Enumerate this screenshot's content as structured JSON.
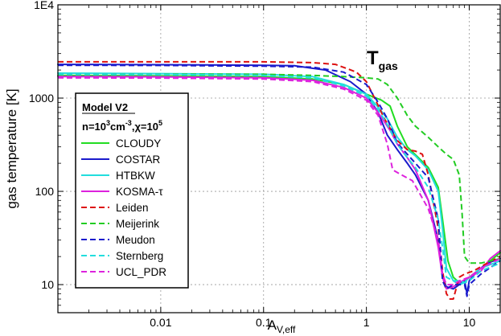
{
  "chart_data": {
    "type": "line",
    "xlabel": "A",
    "xlabel_sub": "V,eff",
    "ylabel": "gas temperature [K]",
    "xscale": "log",
    "yscale": "log",
    "xlim": [
      0.001,
      20
    ],
    "ylim": [
      5,
      10000
    ],
    "grid": true,
    "x_ticks": [
      {
        "value": 0.01,
        "label": "0.01"
      },
      {
        "value": 0.1,
        "label": "0.1"
      },
      {
        "value": 1,
        "label": "1"
      },
      {
        "value": 10,
        "label": "10"
      }
    ],
    "y_ticks": [
      {
        "value": 10,
        "label": "10"
      },
      {
        "value": 100,
        "label": "100"
      },
      {
        "value": 1000,
        "label": "1000"
      },
      {
        "value": 10000,
        "label": "1E4"
      }
    ],
    "annotation": {
      "main": "T",
      "sub": "gas"
    },
    "legend": {
      "position": "left",
      "title": "Model V2",
      "subtitle": {
        "n": "n=10",
        "n_exp": "3",
        "unit": "cm",
        "unit_exp": "-3",
        "chi": ",χ=10",
        "chi_exp": "5"
      }
    },
    "series": [
      {
        "name": "CLOUDY",
        "color": "#22dd22",
        "dash": "solid",
        "points": [
          [
            0.001,
            1750
          ],
          [
            0.01,
            1730
          ],
          [
            0.1,
            1700
          ],
          [
            0.3,
            1600
          ],
          [
            0.6,
            1400
          ],
          [
            1,
            1100
          ],
          [
            1.4,
            950
          ],
          [
            1.7,
            820
          ],
          [
            2,
            500
          ],
          [
            2.5,
            300
          ],
          [
            3.2,
            230
          ],
          [
            4,
            180
          ],
          [
            5,
            110
          ],
          [
            5.5,
            50
          ],
          [
            6.2,
            18
          ],
          [
            7,
            12
          ],
          [
            8,
            10.5
          ],
          [
            9,
            11
          ],
          [
            12,
            14
          ],
          [
            16,
            18
          ],
          [
            20,
            22
          ]
        ]
      },
      {
        "name": "COSTAR",
        "color": "#1a1acc",
        "dash": "solid",
        "points": [
          [
            0.001,
            2300
          ],
          [
            0.01,
            2280
          ],
          [
            0.1,
            2250
          ],
          [
            0.2,
            2220
          ],
          [
            0.4,
            2000
          ],
          [
            0.7,
            1500
          ],
          [
            1,
            1100
          ],
          [
            1.3,
            700
          ],
          [
            1.6,
            400
          ],
          [
            2,
            280
          ],
          [
            2.5,
            200
          ],
          [
            3,
            150
          ],
          [
            4,
            80
          ],
          [
            5,
            30
          ],
          [
            5.5,
            12
          ],
          [
            6,
            9.5
          ],
          [
            7,
            9
          ],
          [
            8,
            10
          ],
          [
            9,
            11
          ],
          [
            9.5,
            8
          ],
          [
            10,
            11
          ],
          [
            12,
            14
          ],
          [
            15,
            17
          ],
          [
            20,
            19
          ]
        ]
      },
      {
        "name": "HTBKW",
        "color": "#22dddd",
        "dash": "solid",
        "points": [
          [
            0.001,
            1850
          ],
          [
            0.01,
            1830
          ],
          [
            0.1,
            1800
          ],
          [
            0.3,
            1700
          ],
          [
            0.6,
            1400
          ],
          [
            1,
            1100
          ],
          [
            1.3,
            800
          ],
          [
            1.6,
            600
          ],
          [
            2,
            380
          ],
          [
            2.5,
            280
          ],
          [
            3,
            240
          ],
          [
            4,
            170
          ],
          [
            5,
            100
          ],
          [
            5.5,
            40
          ],
          [
            6,
            15
          ],
          [
            7,
            11
          ],
          [
            8,
            10
          ],
          [
            9,
            10.5
          ],
          [
            10,
            12
          ],
          [
            13,
            15
          ],
          [
            20,
            18
          ]
        ]
      },
      {
        "name": "KOSMA-τ",
        "color": "#dd22dd",
        "dash": "solid",
        "points": [
          [
            0.001,
            1700
          ],
          [
            0.01,
            1690
          ],
          [
            0.1,
            1650
          ],
          [
            0.3,
            1550
          ],
          [
            0.6,
            1300
          ],
          [
            1,
            1000
          ],
          [
            1.3,
            700
          ],
          [
            1.7,
            450
          ],
          [
            2,
            320
          ],
          [
            2.5,
            230
          ],
          [
            3,
            170
          ],
          [
            4,
            80
          ],
          [
            5,
            25
          ],
          [
            5.5,
            12
          ],
          [
            6,
            9
          ],
          [
            7,
            9.5
          ],
          [
            8,
            10.5
          ],
          [
            10,
            12
          ],
          [
            13,
            14
          ],
          [
            16,
            19
          ],
          [
            20,
            23
          ]
        ]
      },
      {
        "name": "Leiden",
        "color": "#dd1111",
        "dash": "dashed",
        "points": [
          [
            0.001,
            2450
          ],
          [
            0.01,
            2450
          ],
          [
            0.1,
            2450
          ],
          [
            0.3,
            2400
          ],
          [
            0.5,
            2300
          ],
          [
            0.8,
            1900
          ],
          [
            1,
            1500
          ],
          [
            1.2,
            1000
          ],
          [
            1.5,
            600
          ],
          [
            2,
            350
          ],
          [
            2.5,
            280
          ],
          [
            3,
            270
          ],
          [
            3.5,
            250
          ],
          [
            4,
            150
          ],
          [
            5,
            40
          ],
          [
            5.5,
            14
          ],
          [
            6,
            8
          ],
          [
            6.5,
            7
          ],
          [
            7,
            7
          ],
          [
            8,
            12
          ],
          [
            9,
            13
          ],
          [
            11,
            14
          ],
          [
            15,
            17
          ],
          [
            20,
            20
          ]
        ]
      },
      {
        "name": "Meijerink",
        "color": "#22cc22",
        "dash": "dashed",
        "points": [
          [
            0.001,
            1800
          ],
          [
            0.01,
            1800
          ],
          [
            0.1,
            1800
          ],
          [
            0.3,
            1750
          ],
          [
            0.6,
            1700
          ],
          [
            1,
            1650
          ],
          [
            1.3,
            1600
          ],
          [
            1.6,
            1400
          ],
          [
            2,
            1000
          ],
          [
            2.5,
            650
          ],
          [
            3,
            500
          ],
          [
            4,
            380
          ],
          [
            5,
            300
          ],
          [
            6,
            250
          ],
          [
            7,
            220
          ],
          [
            8,
            150
          ],
          [
            8.5,
            60
          ],
          [
            9,
            20
          ],
          [
            10,
            17
          ],
          [
            13,
            17
          ],
          [
            20,
            19
          ]
        ]
      },
      {
        "name": "Meudon",
        "color": "#1a1acc",
        "dash": "dashed",
        "points": [
          [
            0.001,
            2250
          ],
          [
            0.01,
            2240
          ],
          [
            0.1,
            2200
          ],
          [
            0.3,
            2150
          ],
          [
            0.6,
            1900
          ],
          [
            1,
            1400
          ],
          [
            1.3,
            900
          ],
          [
            1.6,
            600
          ],
          [
            2,
            330
          ],
          [
            2.5,
            250
          ],
          [
            3,
            200
          ],
          [
            4,
            140
          ],
          [
            5,
            50
          ],
          [
            5.5,
            11
          ],
          [
            6,
            9
          ],
          [
            7,
            10
          ],
          [
            8,
            10
          ],
          [
            9,
            10
          ],
          [
            9.5,
            7.5
          ],
          [
            10,
            10
          ],
          [
            13,
            13
          ],
          [
            20,
            18
          ]
        ]
      },
      {
        "name": "Sternberg",
        "color": "#22dddd",
        "dash": "dashed",
        "points": [
          [
            0.001,
            1800
          ],
          [
            0.01,
            1790
          ],
          [
            0.1,
            1750
          ],
          [
            0.3,
            1650
          ],
          [
            0.6,
            1350
          ],
          [
            1,
            1050
          ],
          [
            1.3,
            750
          ],
          [
            1.6,
            520
          ],
          [
            2,
            320
          ],
          [
            2.5,
            230
          ],
          [
            3,
            180
          ],
          [
            4,
            110
          ],
          [
            5,
            50
          ],
          [
            5.5,
            25
          ],
          [
            6,
            12
          ],
          [
            7,
            11
          ],
          [
            8,
            11
          ],
          [
            9,
            10.5
          ],
          [
            10,
            11
          ],
          [
            13,
            14
          ],
          [
            20,
            17
          ]
        ]
      },
      {
        "name": "UCL_PDR",
        "color": "#dd22dd",
        "dash": "dashed",
        "points": [
          [
            0.001,
            1650
          ],
          [
            0.01,
            1640
          ],
          [
            0.1,
            1600
          ],
          [
            0.3,
            1500
          ],
          [
            0.6,
            1250
          ],
          [
            1,
            950
          ],
          [
            1.3,
            650
          ],
          [
            1.6,
            320
          ],
          [
            1.8,
            170
          ],
          [
            2.2,
            150
          ],
          [
            2.8,
            130
          ],
          [
            3.3,
            95
          ],
          [
            4,
            65
          ],
          [
            5,
            30
          ],
          [
            5.5,
            13
          ],
          [
            6,
            10
          ],
          [
            7,
            10
          ],
          [
            8,
            11
          ],
          [
            10,
            12
          ],
          [
            13,
            15
          ],
          [
            20,
            19
          ]
        ]
      }
    ]
  }
}
